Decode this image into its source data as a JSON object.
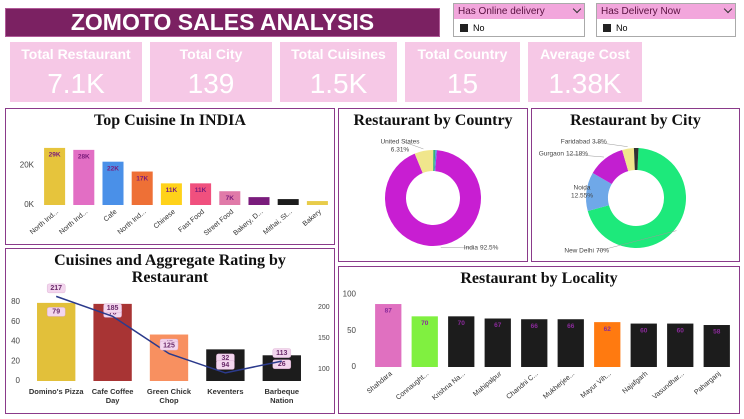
{
  "header": {
    "title": "ZOMOTO SALES ANALYSIS"
  },
  "filters": [
    {
      "label": "Has Online delivery",
      "option": "No"
    },
    {
      "label": "Has Delivery Now",
      "option": "No"
    }
  ],
  "kpis": [
    {
      "label": "Total Restaurant",
      "value": "7.1K"
    },
    {
      "label": "Total City",
      "value": "139"
    },
    {
      "label": "Total Cuisines",
      "value": "1.5K"
    },
    {
      "label": "Total Country",
      "value": "15"
    },
    {
      "label": "Average Cost",
      "value": "1.38K"
    }
  ],
  "chart_data": [
    {
      "type": "bar",
      "title": "Top Cuisine In INDIA",
      "categories": [
        "North Ind...",
        "North Ind...",
        "Cafe",
        "North Ind...",
        "Chinese",
        "Fast Food",
        "Street Food",
        "Bakery, D...",
        "Mithai, St...",
        "Bakery"
      ],
      "values": [
        29000,
        28000,
        22000,
        17000,
        11000,
        11000,
        7000,
        4000,
        3000,
        2000
      ],
      "value_labels": [
        "29K",
        "28K",
        "22K",
        "17K",
        "11K",
        "11K",
        "7K",
        null,
        null,
        null
      ],
      "colors": [
        "#e6c43c",
        "#e26ec4",
        "#4a90e8",
        "#ee7036",
        "#ffd21a",
        "#f0507e",
        "#e07aa8",
        "#7a1c7c",
        "#1c1c1c",
        "#e8cc4a"
      ],
      "ylim": [
        0,
        32000
      ],
      "yticks": [
        {
          "value": 0,
          "label": "0K"
        },
        {
          "value": 20000,
          "label": "20K"
        }
      ]
    },
    {
      "type": "donut",
      "title": "Restaurant by Country",
      "categories": [
        "India",
        "United States",
        null,
        null
      ],
      "values": [
        92.5,
        6.31,
        0.7,
        0.49
      ],
      "value_labels": [
        "92.5%",
        "6.31%",
        null,
        null
      ],
      "colors": [
        "#c81ed2",
        "#f0e68c",
        "#3cb371",
        "#4a8fe8"
      ]
    },
    {
      "type": "donut",
      "title": "Restaurant by City",
      "categories": [
        "New Delhi",
        "Noida",
        "Gurgaon",
        "Faridabad",
        null
      ],
      "values": [
        70,
        12.55,
        12.18,
        3.8,
        1.47
      ],
      "value_labels": [
        "70%",
        "12.55%",
        "12.18%",
        "3.8%",
        null
      ],
      "colors": [
        "#1de97b",
        "#6fa8e8",
        "#c21fd0",
        "#f0e68c",
        "#333333"
      ]
    },
    {
      "type": "combo",
      "title": "Cuisines and Aggregate Rating by Restaurant",
      "categories": [
        "Domino's Pizza",
        "Cafe Coffee Day",
        "Green Chick Chop",
        "Keventers",
        "Barbeque Nation"
      ],
      "series": [
        {
          "kind": "bar",
          "colors": [
            "#e2c03a",
            "#a83434",
            "#f89060",
            "#1c1c1c",
            "#1c1c1c"
          ],
          "values": [
            79,
            78,
            47,
            32,
            26
          ]
        },
        {
          "kind": "line",
          "axis": "y2",
          "color": "#2b3a8c",
          "values": [
            217,
            185,
            125,
            94,
            113
          ]
        }
      ],
      "ylim": [
        0,
        90
      ],
      "yticks": [
        0,
        20,
        40,
        60,
        80
      ],
      "y2lim": [
        81,
        224
      ],
      "y2ticks": [
        100,
        150,
        200
      ]
    },
    {
      "type": "bar",
      "title": "Restaurant by Locality",
      "categories": [
        "Shahdara",
        "Connaught...",
        "Krishna Na...",
        "Mahipalpur",
        "Chandni C...",
        "Mukherjee...",
        "Mayur Vih...",
        "Najafgarh",
        "Vasundhar...",
        "Paharganj"
      ],
      "values": [
        87,
        70,
        70,
        67,
        66,
        66,
        62,
        60,
        60,
        58
      ],
      "colors": [
        "#e070c0",
        "#80f040",
        "#1c1c1c",
        "#1c1c1c",
        "#1c1c1c",
        "#1c1c1c",
        "#ff7a10",
        "#1c1c1c",
        "#1c1c1c",
        "#1c1c1c"
      ],
      "ylim": [
        0,
        105
      ],
      "yticks": [
        0,
        50,
        100
      ]
    }
  ]
}
